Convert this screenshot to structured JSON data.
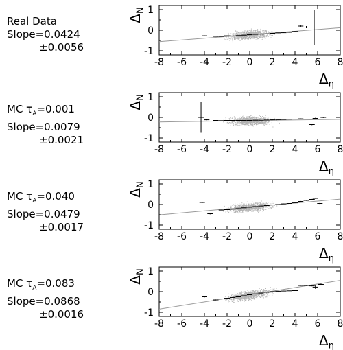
{
  "chart_data": [
    {
      "type": "scatter",
      "label_lines": [
        "Real Data",
        "Slope=0.0424",
        "±0.0056"
      ],
      "ylabel": "Δ_N",
      "xlabel": "Δ_η",
      "xlim": [
        -8,
        8
      ],
      "ylim": [
        -1.2,
        1.2
      ],
      "x_ticks": [
        -8,
        -6,
        -4,
        -2,
        0,
        2,
        4,
        6,
        8
      ],
      "y_ticks": [
        -1,
        0,
        1
      ],
      "fit": {
        "slope": 0.0424,
        "intercept": -0.22
      },
      "points": [
        {
          "x": -4.0,
          "y": -0.27,
          "err": 0.02
        },
        {
          "x": -3.0,
          "y": -0.3,
          "err": 0.01
        },
        {
          "x": -2.5,
          "y": -0.3,
          "err": 0.01
        },
        {
          "x": -2.0,
          "y": -0.27,
          "err": 0.01
        },
        {
          "x": -1.5,
          "y": -0.28,
          "err": 0.01
        },
        {
          "x": -1.0,
          "y": -0.26,
          "err": 0.01
        },
        {
          "x": -0.5,
          "y": -0.24,
          "err": 0.01
        },
        {
          "x": 0.0,
          "y": -0.22,
          "err": 0.01
        },
        {
          "x": 0.5,
          "y": -0.2,
          "err": 0.01
        },
        {
          "x": 1.0,
          "y": -0.19,
          "err": 0.01
        },
        {
          "x": 1.5,
          "y": -0.18,
          "err": 0.01
        },
        {
          "x": 2.0,
          "y": -0.15,
          "err": 0.01
        },
        {
          "x": 2.5,
          "y": -0.13,
          "err": 0.01
        },
        {
          "x": 3.0,
          "y": -0.12,
          "err": 0.01
        },
        {
          "x": 3.5,
          "y": -0.1,
          "err": 0.02
        },
        {
          "x": 4.0,
          "y": -0.06,
          "err": 0.02
        },
        {
          "x": 4.5,
          "y": 0.2,
          "err": 0.04
        },
        {
          "x": 5.0,
          "y": 0.15,
          "err": 0.05
        },
        {
          "x": 5.7,
          "y": 0.15,
          "err": 0.85
        }
      ]
    },
    {
      "type": "scatter",
      "label_lines": [
        "MC τ_A=0.001",
        "Slope=0.0079",
        "±0.0021"
      ],
      "ylabel": "Δ_N",
      "xlabel": "Δ_η",
      "xlim": [
        -8,
        8
      ],
      "ylim": [
        -1.2,
        1.2
      ],
      "x_ticks": [
        -8,
        -6,
        -4,
        -2,
        0,
        2,
        4,
        6,
        8
      ],
      "y_ticks": [
        -1,
        0,
        1
      ],
      "fit": {
        "slope": 0.0079,
        "intercept": -0.16
      },
      "points": [
        {
          "x": -4.3,
          "y": 0.0,
          "err": 0.75
        },
        {
          "x": -3.8,
          "y": -0.12,
          "err": 0.02
        },
        {
          "x": -3.0,
          "y": -0.15,
          "err": 0.01
        },
        {
          "x": -2.5,
          "y": -0.16,
          "err": 0.01
        },
        {
          "x": -2.0,
          "y": -0.15,
          "err": 0.01
        },
        {
          "x": -1.5,
          "y": -0.15,
          "err": 0.01
        },
        {
          "x": -1.0,
          "y": -0.15,
          "err": 0.01
        },
        {
          "x": -0.5,
          "y": -0.15,
          "err": 0.01
        },
        {
          "x": 0.0,
          "y": -0.15,
          "err": 0.01
        },
        {
          "x": 0.5,
          "y": -0.14,
          "err": 0.01
        },
        {
          "x": 1.0,
          "y": -0.14,
          "err": 0.01
        },
        {
          "x": 1.5,
          "y": -0.13,
          "err": 0.01
        },
        {
          "x": 2.0,
          "y": -0.12,
          "err": 0.01
        },
        {
          "x": 2.5,
          "y": -0.11,
          "err": 0.01
        },
        {
          "x": 3.0,
          "y": -0.1,
          "err": 0.01
        },
        {
          "x": 3.5,
          "y": -0.09,
          "err": 0.01
        },
        {
          "x": 4.5,
          "y": -0.07,
          "err": 0.02
        },
        {
          "x": 5.5,
          "y": -0.35,
          "err": 0.03
        },
        {
          "x": 5.8,
          "y": -0.05,
          "err": 0.03
        },
        {
          "x": 6.5,
          "y": 0.0,
          "err": 0.03
        }
      ]
    },
    {
      "type": "scatter",
      "label_lines": [
        "MC τ_A=0.040",
        "Slope=0.0479",
        "±0.0017"
      ],
      "ylabel": "Δ_N",
      "xlabel": "Δ_η",
      "xlim": [
        -8,
        8
      ],
      "ylim": [
        -1.2,
        1.2
      ],
      "x_ticks": [
        -8,
        -6,
        -4,
        -2,
        0,
        2,
        4,
        6,
        8
      ],
      "y_ticks": [
        -1,
        0,
        1
      ],
      "fit": {
        "slope": 0.0479,
        "intercept": -0.12
      },
      "points": [
        {
          "x": -4.2,
          "y": 0.1,
          "err": 0.03
        },
        {
          "x": -3.5,
          "y": -0.45,
          "err": 0.03
        },
        {
          "x": -2.5,
          "y": -0.27,
          "err": 0.01
        },
        {
          "x": -2.0,
          "y": -0.25,
          "err": 0.01
        },
        {
          "x": -1.5,
          "y": -0.23,
          "err": 0.01
        },
        {
          "x": -1.0,
          "y": -0.2,
          "err": 0.01
        },
        {
          "x": -0.5,
          "y": -0.16,
          "err": 0.01
        },
        {
          "x": 0.0,
          "y": -0.13,
          "err": 0.01
        },
        {
          "x": 0.5,
          "y": -0.1,
          "err": 0.01
        },
        {
          "x": 1.0,
          "y": -0.07,
          "err": 0.01
        },
        {
          "x": 1.5,
          "y": -0.05,
          "err": 0.01
        },
        {
          "x": 2.0,
          "y": -0.02,
          "err": 0.01
        },
        {
          "x": 2.5,
          "y": 0.0,
          "err": 0.01
        },
        {
          "x": 3.0,
          "y": 0.03,
          "err": 0.01
        },
        {
          "x": 3.5,
          "y": 0.05,
          "err": 0.01
        },
        {
          "x": 4.0,
          "y": 0.08,
          "err": 0.01
        },
        {
          "x": 4.5,
          "y": 0.15,
          "err": 0.02
        },
        {
          "x": 5.0,
          "y": 0.2,
          "err": 0.02
        },
        {
          "x": 5.5,
          "y": 0.25,
          "err": 0.02
        },
        {
          "x": 5.8,
          "y": 0.3,
          "err": 0.02
        },
        {
          "x": 6.2,
          "y": 0.05,
          "err": 0.03
        }
      ]
    },
    {
      "type": "scatter",
      "label_lines": [
        "MC τ_A=0.083",
        "Slope=0.0868",
        "±0.0016"
      ],
      "ylabel": "Δ_N",
      "xlabel": "Δ_η",
      "xlim": [
        -8,
        8
      ],
      "ylim": [
        -1.2,
        1.2
      ],
      "x_ticks": [
        -8,
        -6,
        -4,
        -2,
        0,
        2,
        4,
        6,
        8
      ],
      "y_ticks": [
        -1,
        0,
        1
      ],
      "fit": {
        "slope": 0.0868,
        "intercept": -0.15
      },
      "points": [
        {
          "x": -4.0,
          "y": -0.25,
          "err": 0.03
        },
        {
          "x": -3.0,
          "y": -0.4,
          "err": 0.02
        },
        {
          "x": -2.5,
          "y": -0.35,
          "err": 0.01
        },
        {
          "x": -2.0,
          "y": -0.32,
          "err": 0.01
        },
        {
          "x": -1.5,
          "y": -0.28,
          "err": 0.01
        },
        {
          "x": -1.0,
          "y": -0.25,
          "err": 0.01
        },
        {
          "x": -0.5,
          "y": -0.2,
          "err": 0.01
        },
        {
          "x": 0.0,
          "y": -0.15,
          "err": 0.01
        },
        {
          "x": 0.5,
          "y": -0.11,
          "err": 0.01
        },
        {
          "x": 1.0,
          "y": -0.07,
          "err": 0.01
        },
        {
          "x": 1.5,
          "y": -0.03,
          "err": 0.01
        },
        {
          "x": 2.0,
          "y": 0.0,
          "err": 0.01
        },
        {
          "x": 2.5,
          "y": 0.02,
          "err": 0.01
        },
        {
          "x": 3.0,
          "y": 0.03,
          "err": 0.01
        },
        {
          "x": 3.5,
          "y": 0.04,
          "err": 0.01
        },
        {
          "x": 4.0,
          "y": 0.05,
          "err": 0.01
        },
        {
          "x": 4.5,
          "y": 0.3,
          "err": 0.02
        },
        {
          "x": 5.0,
          "y": 0.3,
          "err": 0.02
        },
        {
          "x": 5.5,
          "y": 0.28,
          "err": 0.02
        },
        {
          "x": 5.8,
          "y": 0.22,
          "err": 0.08
        },
        {
          "x": 6.3,
          "y": 0.35,
          "err": 0.04
        }
      ]
    }
  ]
}
